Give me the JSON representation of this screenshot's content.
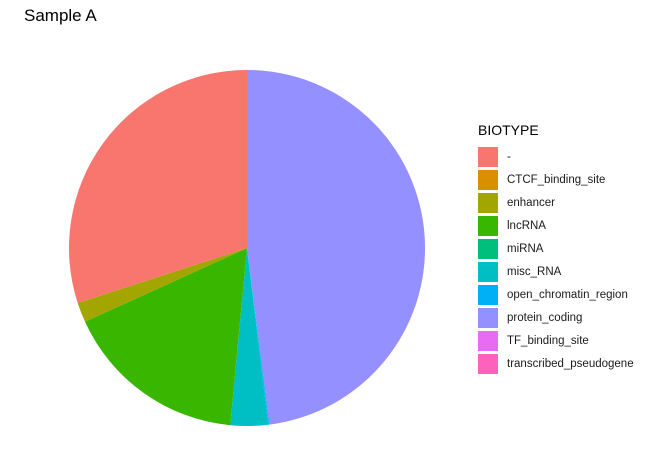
{
  "chart_data": {
    "type": "pie",
    "title": "Sample A",
    "legend": {
      "title": "BIOTYPE",
      "placement": "right"
    },
    "grid": false,
    "slices": [
      {
        "label": "-",
        "value": 30.0,
        "color": "#F8766D"
      },
      {
        "label": "CTCF_binding_site",
        "value": 0.0,
        "color": "#D89000"
      },
      {
        "label": "enhancer",
        "value": 1.8,
        "color": "#A3A500"
      },
      {
        "label": "lncRNA",
        "value": 16.7,
        "color": "#39B600"
      },
      {
        "label": "miRNA",
        "value": 0.0,
        "color": "#00BF7D"
      },
      {
        "label": "misc_RNA",
        "value": 3.4,
        "color": "#00BFC4"
      },
      {
        "label": "open_chromatin_region",
        "value": 0.1,
        "color": "#00B0F6"
      },
      {
        "label": "protein_coding",
        "value": 48.0,
        "color": "#9590FF"
      },
      {
        "label": "TF_binding_site",
        "value": 0.0,
        "color": "#E76BF3"
      },
      {
        "label": "transcribed_pseudogene",
        "value": 0.0,
        "color": "#FF62BC"
      }
    ]
  }
}
